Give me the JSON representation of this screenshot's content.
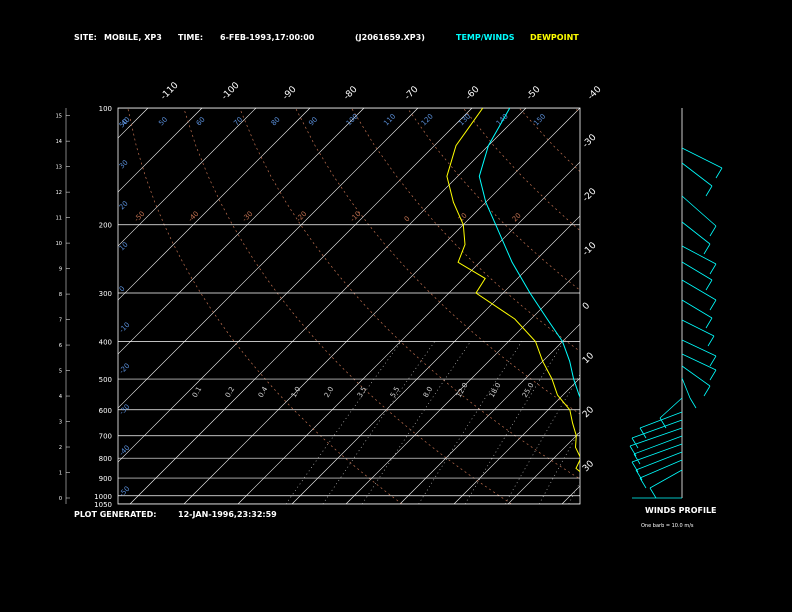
{
  "header": {
    "site_label": "SITE:",
    "site_value": "MOBILE, XP3",
    "time_label": "TIME:",
    "time_value": "6-FEB-1993,17:00:00",
    "file_value": "(J2061659.XP3)",
    "temp_label": "TEMP/WINDS",
    "dew_label": "DEWPOINT"
  },
  "footer": {
    "plot_label": "PLOT GENERATED:",
    "plot_value": "12-JAN-1996,23:32:59",
    "winds_title": "WINDS PROFILE",
    "barb_note": "One barb = 10.0 m/s"
  },
  "colors": {
    "temp": "#00ffff",
    "dewpoint": "#ffff00",
    "isobar": "#ffffff",
    "isotherm": "#ffffff",
    "dry_adiabat": "#c07050",
    "mixing_ratio": "#d0d0d0",
    "moist_adiabat": "#c07050"
  },
  "chart_data": {
    "type": "line",
    "pressure_labels": [
      "100",
      "200",
      "300",
      "400",
      "500",
      "600",
      "700",
      "800",
      "900",
      "1000",
      "1050"
    ],
    "height_ticks": [
      "0",
      "1",
      "2",
      "3",
      "4",
      "5",
      "6",
      "7",
      "8",
      "9",
      "10",
      "11",
      "12",
      "13",
      "14",
      "15"
    ],
    "isotherm_bottom_labels": [
      "-110",
      "-100",
      "-90",
      "-80",
      "-70",
      "-60",
      "-50",
      "-40"
    ],
    "isotherm_right_labels": [
      "-30",
      "-20",
      "-10",
      "0",
      "10",
      "20",
      "30"
    ],
    "potential_temp_labels": [
      "150",
      "140",
      "130",
      "120",
      "110",
      "100",
      "90",
      "80",
      "70",
      "60",
      "50",
      "40"
    ],
    "dry_adiabat_labels": [
      "20",
      "10",
      "0",
      "-10",
      "-20",
      "-30",
      "-40",
      "-50"
    ],
    "mixing_ratio_labels": [
      "0.1",
      "0.2",
      "0.4",
      "1.0",
      "2.0",
      "3.5",
      "5.5",
      "8.0",
      "12.0",
      "18.0",
      "25.0"
    ],
    "left_small_labels": [
      "50",
      "30",
      "20",
      "10",
      "0",
      "-10",
      "-20",
      "-30",
      "-40",
      "-50"
    ],
    "temperature": [
      {
        "p": 1000,
        "t": 22
      },
      {
        "p": 975,
        "t": 19
      },
      {
        "p": 950,
        "t": 17
      },
      {
        "p": 925,
        "t": 15
      },
      {
        "p": 900,
        "t": 13
      },
      {
        "p": 850,
        "t": 10
      },
      {
        "p": 800,
        "t": 8
      },
      {
        "p": 750,
        "t": 6
      },
      {
        "p": 700,
        "t": 3
      },
      {
        "p": 650,
        "t": 0
      },
      {
        "p": 600,
        "t": -3
      },
      {
        "p": 550,
        "t": -7
      },
      {
        "p": 500,
        "t": -11
      },
      {
        "p": 450,
        "t": -15
      },
      {
        "p": 400,
        "t": -20
      },
      {
        "p": 350,
        "t": -27
      },
      {
        "p": 300,
        "t": -35
      },
      {
        "p": 250,
        "t": -44
      },
      {
        "p": 200,
        "t": -54
      },
      {
        "p": 175,
        "t": -60
      },
      {
        "p": 150,
        "t": -66
      },
      {
        "p": 125,
        "t": -70
      },
      {
        "p": 100,
        "t": -73
      }
    ],
    "dewpoint": [
      {
        "p": 1000,
        "t": 16
      },
      {
        "p": 975,
        "t": 14
      },
      {
        "p": 950,
        "t": 12
      },
      {
        "p": 925,
        "t": 11
      },
      {
        "p": 900,
        "t": 10
      },
      {
        "p": 850,
        "t": 6
      },
      {
        "p": 800,
        "t": 5
      },
      {
        "p": 750,
        "t": 2
      },
      {
        "p": 700,
        "t": 0
      },
      {
        "p": 650,
        "t": -3
      },
      {
        "p": 600,
        "t": -6
      },
      {
        "p": 550,
        "t": -11
      },
      {
        "p": 500,
        "t": -15
      },
      {
        "p": 450,
        "t": -20
      },
      {
        "p": 400,
        "t": -25
      },
      {
        "p": 350,
        "t": -33
      },
      {
        "p": 300,
        "t": -45
      },
      {
        "p": 275,
        "t": -46
      },
      {
        "p": 250,
        "t": -54
      },
      {
        "p": 225,
        "t": -56
      },
      {
        "p": 200,
        "t": -60
      },
      {
        "p": 175,
        "t": -66
      },
      {
        "p": 150,
        "t": -72
      },
      {
        "p": 125,
        "t": -76
      },
      {
        "p": 100,
        "t": -78
      }
    ]
  }
}
